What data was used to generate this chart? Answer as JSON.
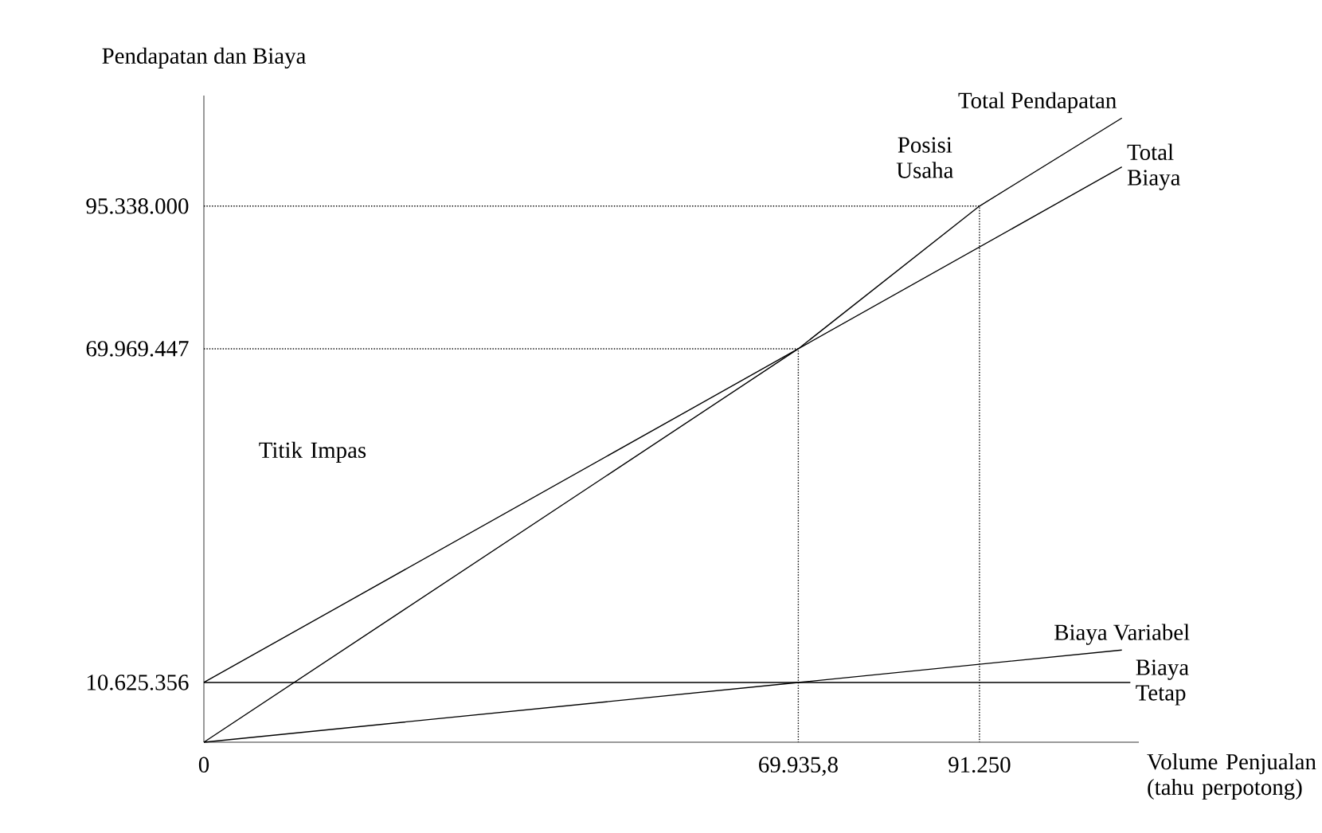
{
  "chart_data": {
    "type": "line",
    "ylabel": "Pendapatan dan Biaya",
    "xlabel": "Volume Penjualan (tahu perpotong)",
    "xlim": [
      0,
      110000
    ],
    "ylim": [
      0,
      115000000
    ],
    "xticks": [
      0,
      {
        "value": 69935.8,
        "label": "69.935,8"
      },
      {
        "value": 91250,
        "label": "91.250"
      }
    ],
    "yticks": [
      {
        "value": 10625356,
        "label": "10.625.356"
      },
      {
        "value": 69969447,
        "label": "69.969.447"
      },
      {
        "value": 95338000,
        "label": "95.338.000"
      }
    ],
    "marker": "none",
    "series": [
      {
        "name": "Total Pendapatan",
        "color": "#000000",
        "line_style": "solid",
        "x": [
          0,
          69935.8,
          91250,
          108000
        ],
        "values": [
          0,
          69969447,
          95338000,
          111000000
        ]
      },
      {
        "name": "Total Biaya",
        "color": "#000000",
        "line_style": "solid",
        "x": [
          0,
          69935.8,
          108000
        ],
        "values": [
          10625356,
          69969447,
          102300000
        ]
      },
      {
        "name": "Biaya Variabel",
        "color": "#000000",
        "line_style": "solid",
        "x": [
          0,
          69935.8,
          108000
        ],
        "values": [
          0,
          10625356,
          16400000
        ]
      },
      {
        "name": "Biaya Tetap",
        "color": "#000000",
        "line_style": "solid",
        "x": [
          0,
          109000
        ],
        "values": [
          10625356,
          10625356
        ]
      },
      {
        "color": "#000000",
        "line_style": "dotted",
        "x": [
          0,
          69935.8,
          69935.8
        ],
        "values": [
          69969447,
          69969447,
          0
        ]
      },
      {
        "color": "#000000",
        "line_style": "dotted",
        "x": [
          0,
          91250,
          91250
        ],
        "values": [
          95338000,
          95338000,
          0
        ]
      }
    ],
    "annotations": [
      "Titik Impas",
      "Posisi Usaha"
    ]
  }
}
